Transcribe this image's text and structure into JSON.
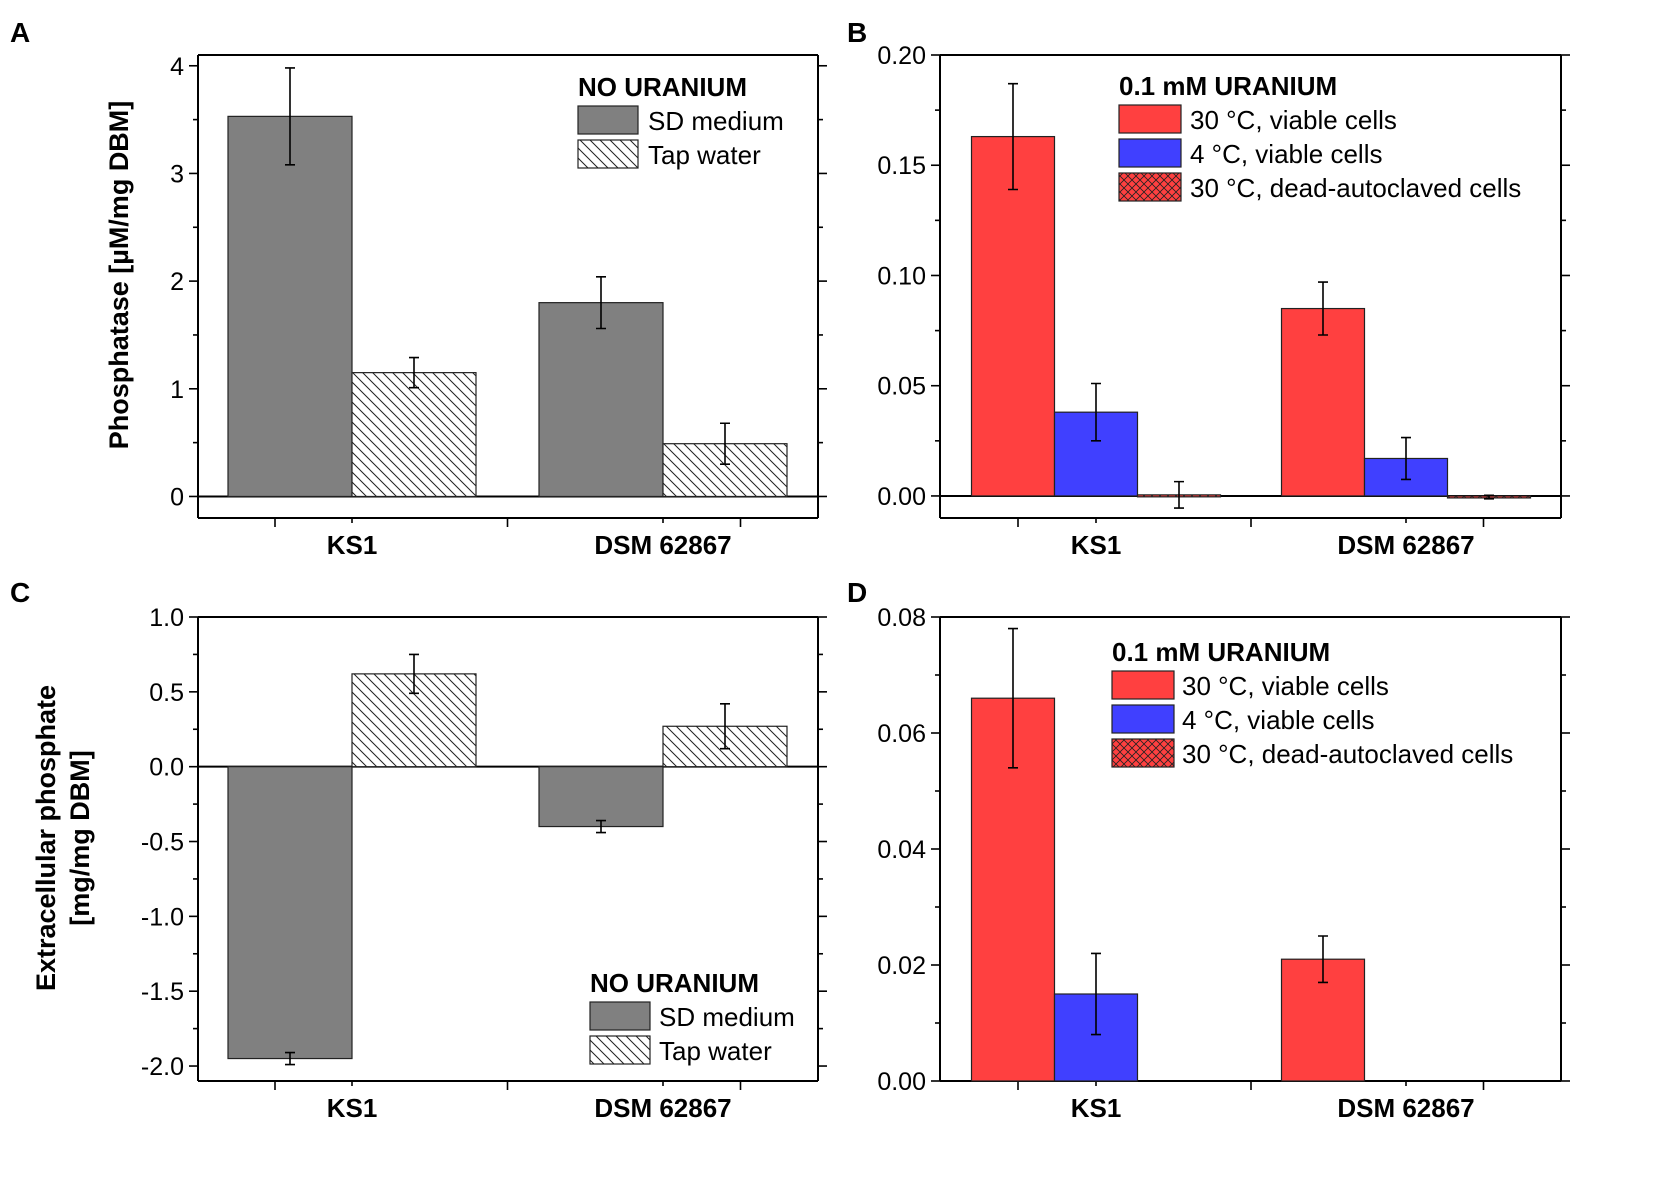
{
  "chart_data": [
    {
      "panel": "A",
      "type": "bar",
      "categories": [
        "KS1",
        "DSM 62867"
      ],
      "ylabel": "Phosphatase [µM/mg DBM]",
      "ylim": [
        -0.2,
        4.1
      ],
      "yticks": [
        "0",
        "1",
        "2",
        "3",
        "4"
      ],
      "ytick_values": [
        0,
        1,
        2,
        3,
        4
      ],
      "legend_title": "NO URANIUM",
      "series": [
        {
          "name": "SD medium",
          "style": "gray",
          "values": [
            3.53,
            1.8
          ],
          "errors": [
            0.45,
            0.24
          ]
        },
        {
          "name": "Tap water",
          "style": "hatch",
          "values": [
            1.15,
            0.49
          ],
          "errors": [
            0.14,
            0.19
          ]
        }
      ]
    },
    {
      "panel": "B",
      "type": "bar",
      "categories": [
        "KS1",
        "DSM 62867"
      ],
      "ylabel": "",
      "ylim": [
        -0.01,
        0.2
      ],
      "yticks": [
        "0.00",
        "0.05",
        "0.10",
        "0.15",
        "0.20"
      ],
      "ytick_values": [
        0,
        0.05,
        0.1,
        0.15,
        0.2
      ],
      "legend_title": "0.1 mM URANIUM",
      "series": [
        {
          "name": "30 °C, viable cells",
          "style": "red",
          "values": [
            0.163,
            0.085
          ],
          "errors": [
            0.024,
            0.012
          ]
        },
        {
          "name": "4 °C, viable cells",
          "style": "blue",
          "values": [
            0.038,
            0.017
          ],
          "errors": [
            0.013,
            0.0095
          ]
        },
        {
          "name": "30 °C, dead-autoclaved cells",
          "style": "redhatch",
          "values": [
            0.0005,
            -0.0005
          ],
          "errors": [
            0.006,
            0.0008
          ]
        }
      ]
    },
    {
      "panel": "C",
      "type": "bar",
      "categories": [
        "KS1",
        "DSM 62867"
      ],
      "ylabel": "Extracellular phosphate\n[mg/mg DBM]",
      "ylim": [
        -2.1,
        1.0
      ],
      "yticks": [
        "-2.0",
        "-1.5",
        "-1.0",
        "-0.5",
        "0.0",
        "0.5",
        "1.0"
      ],
      "ytick_values": [
        -2.0,
        -1.5,
        -1.0,
        -0.5,
        0.0,
        0.5,
        1.0
      ],
      "legend_title": "NO URANIUM",
      "series": [
        {
          "name": "SD medium",
          "style": "gray",
          "values": [
            -1.95,
            -0.4
          ],
          "errors": [
            0.04,
            0.04
          ]
        },
        {
          "name": "Tap water",
          "style": "hatch",
          "values": [
            0.62,
            0.27
          ],
          "errors": [
            0.13,
            0.15
          ]
        }
      ]
    },
    {
      "panel": "D",
      "type": "bar",
      "categories": [
        "KS1",
        "DSM 62867"
      ],
      "ylabel": "",
      "ylim": [
        0,
        0.08
      ],
      "yticks": [
        "0.00",
        "0.02",
        "0.04",
        "0.06",
        "0.08"
      ],
      "ytick_values": [
        0,
        0.02,
        0.04,
        0.06,
        0.08
      ],
      "legend_title": "0.1 mM URANIUM",
      "series": [
        {
          "name": "30 °C, viable cells",
          "style": "red",
          "values": [
            0.066,
            0.021
          ],
          "errors": [
            0.012,
            0.004
          ]
        },
        {
          "name": "4 °C, viable cells",
          "style": "blue",
          "values": [
            0.015,
            null
          ],
          "errors": [
            0.007,
            null
          ]
        },
        {
          "name": "30 °C, dead-autoclaved cells",
          "style": "redhatch",
          "values": [
            null,
            null
          ],
          "errors": [
            null,
            null
          ]
        }
      ]
    }
  ],
  "colors": {
    "gray": "#808080",
    "red": "#ff4040",
    "blue": "#4040ff",
    "axis": "#000000"
  }
}
